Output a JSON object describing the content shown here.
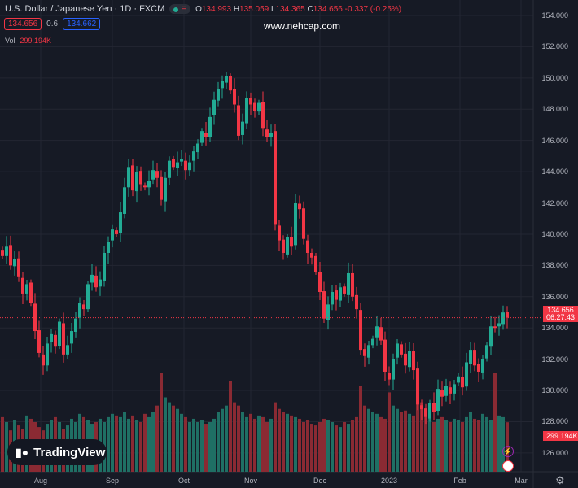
{
  "header": {
    "title": "U.S. Dollar / Japanese Yen · 1D · FXCM",
    "o_label": "O",
    "o": "134.993",
    "h_label": "H",
    "h": "135.059",
    "l_label": "L",
    "l": "134.365",
    "c_label": "C",
    "c": "134.656",
    "change": "-0.337 (-0.25%)",
    "sell": "134.656",
    "spread": "0.6",
    "buy": "134.662",
    "vol_label": "Vol",
    "vol_value": "299.194K"
  },
  "watermark": "www.nehcap.com",
  "logo": "TradingView",
  "last_price_tag": {
    "price": "134.656",
    "countdown": "06:27:43"
  },
  "volume_tag": "299.194K",
  "colors": {
    "up": "#22ab94",
    "down": "#f23645",
    "up_vol": "#1f6f64",
    "down_vol": "#8a2a33"
  },
  "chart_data": {
    "type": "candlestick",
    "title": "U.S. Dollar / Japanese Yen · 1D · FXCM",
    "ylim": [
      125,
      155
    ],
    "y_ticks": [
      "154.000",
      "152.000",
      "150.000",
      "148.000",
      "146.000",
      "144.000",
      "142.000",
      "140.000",
      "138.000",
      "136.000",
      "134.000",
      "132.000",
      "130.000",
      "128.000",
      "126.000"
    ],
    "x_ticks": [
      "Aug",
      "Sep",
      "Oct",
      "Nov",
      "Dec",
      "2023",
      "Feb",
      "Mar"
    ],
    "closes": [
      138.6,
      139.2,
      138.0,
      138.4,
      137.3,
      136.2,
      136.8,
      135.6,
      133.8,
      132.4,
      131.6,
      133.0,
      133.6,
      132.8,
      134.4,
      132.3,
      132.9,
      133.8,
      134.6,
      135.6,
      135.2,
      136.8,
      137.4,
      136.6,
      137.1,
      138.8,
      139.5,
      140.3,
      140.0,
      141.4,
      143.0,
      144.3,
      142.8,
      144.0,
      143.2,
      143.0,
      143.4,
      144.1,
      143.6,
      142.2,
      143.6,
      144.7,
      144.3,
      144.6,
      144.8,
      144.1,
      144.6,
      145.3,
      145.8,
      146.6,
      146.2,
      147.5,
      148.6,
      149.3,
      149.8,
      150.1,
      149.2,
      148.3,
      146.3,
      147.2,
      148.7,
      148.3,
      147.9,
      148.4,
      146.8,
      146.2,
      146.5,
      140.6,
      139.6,
      138.8,
      139.8,
      139.2,
      142.0,
      141.6,
      139.7,
      138.8,
      138.5,
      137.6,
      136.3,
      134.6,
      135.5,
      136.3,
      135.8,
      136.6,
      136.2,
      137.5,
      136.0,
      135.2,
      132.6,
      132.2,
      132.9,
      133.3,
      134.1,
      133.2,
      131.2,
      130.7,
      132.0,
      133.0,
      132.3,
      131.6,
      132.5,
      131.3,
      129.1,
      128.8,
      128.3,
      129.2,
      128.6,
      130.1,
      129.6,
      130.3,
      129.8,
      130.4,
      130.9,
      130.2,
      131.8,
      132.6,
      131.6,
      131.2,
      132.0,
      132.9,
      134.1,
      134.0,
      134.3,
      134.99,
      134.656
    ],
    "volumes_k": [
      330,
      300,
      250,
      310,
      280,
      260,
      340,
      320,
      300,
      270,
      250,
      290,
      310,
      330,
      300,
      260,
      280,
      320,
      300,
      350,
      330,
      310,
      290,
      300,
      320,
      300,
      330,
      350,
      340,
      330,
      360,
      320,
      340,
      310,
      300,
      350,
      330,
      360,
      400,
      600,
      450,
      420,
      400,
      380,
      350,
      330,
      300,
      320,
      300,
      310,
      290,
      300,
      320,
      360,
      380,
      400,
      550,
      420,
      400,
      360,
      330,
      350,
      320,
      340,
      330,
      300,
      320,
      420,
      380,
      360,
      350,
      340,
      330,
      320,
      300,
      310,
      290,
      280,
      300,
      320,
      310,
      300,
      280,
      270,
      300,
      290,
      310,
      330,
      520,
      400,
      380,
      360,
      350,
      330,
      320,
      480,
      400,
      380,
      360,
      370,
      350,
      340,
      460,
      420,
      380,
      330,
      300,
      320,
      330,
      310,
      300,
      320,
      310,
      300,
      330,
      360,
      320,
      310,
      350,
      330,
      310,
      600,
      340,
      330,
      299.194
    ]
  }
}
